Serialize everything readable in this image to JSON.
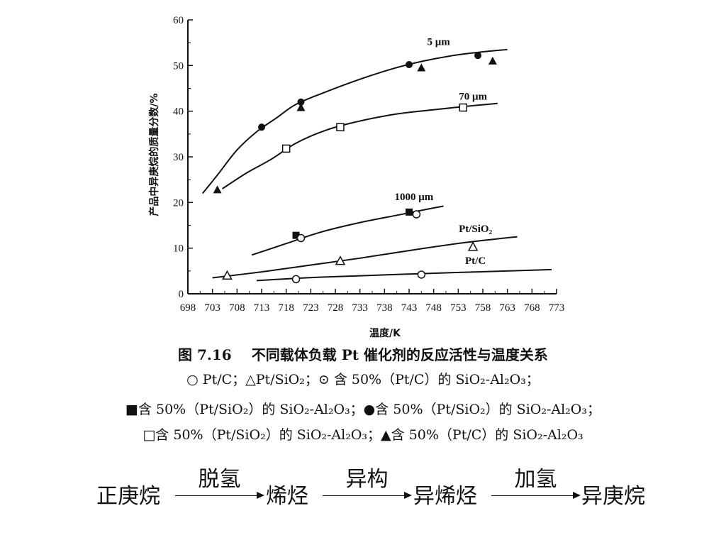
{
  "chart_data": {
    "type": "line",
    "ylabel": "产品中异庚烷的质量分数/%",
    "xlabel": "温度/K",
    "xlim": [
      698,
      773
    ],
    "ylim": [
      0,
      60
    ],
    "xticks": [
      "698",
      "703",
      "708",
      "713",
      "718",
      "723",
      "728",
      "733",
      "738",
      "743",
      "748",
      "753",
      "758",
      "763",
      "768",
      "773"
    ],
    "yticks": [
      "0",
      "10",
      "20",
      "30",
      "40",
      "50",
      "60"
    ],
    "grid": false,
    "curves": [
      {
        "name": "5 μm",
        "label_at": [
          749,
          54.5
        ],
        "points": [
          [
            701,
            22
          ],
          [
            704,
            26
          ],
          [
            708,
            31.5
          ],
          [
            712,
            35.5
          ],
          [
            716,
            38.5
          ],
          [
            720,
            41.5
          ],
          [
            726,
            44.2
          ],
          [
            733,
            47
          ],
          [
            740,
            49.4
          ],
          [
            746,
            51
          ],
          [
            752,
            52.2
          ],
          [
            758,
            53
          ],
          [
            763,
            53.5
          ]
        ]
      },
      {
        "name": "70 μm",
        "label_at": [
          756,
          42.5
        ],
        "points": [
          [
            705,
            23
          ],
          [
            710,
            26.5
          ],
          [
            715,
            29.5
          ],
          [
            720,
            33
          ],
          [
            726,
            35.8
          ],
          [
            732,
            37.6
          ],
          [
            740,
            39.3
          ],
          [
            747,
            40.2
          ],
          [
            754,
            41
          ],
          [
            761,
            41.7
          ]
        ]
      },
      {
        "name": "1000 μm",
        "label_at": [
          744,
          20.5
        ],
        "points": [
          [
            711,
            8.5
          ],
          [
            718,
            11
          ],
          [
            725,
            13.5
          ],
          [
            733,
            15.6
          ],
          [
            741,
            17.3
          ],
          [
            747,
            18.6
          ],
          [
            750,
            19.2
          ]
        ]
      },
      {
        "name": "Pt/SiO₂",
        "label_at": [
          756.5,
          13.5
        ],
        "points": [
          [
            703,
            3.5
          ],
          [
            713,
            4.8
          ],
          [
            723,
            6.3
          ],
          [
            733,
            7.8
          ],
          [
            745,
            9.8
          ],
          [
            755,
            11.3
          ],
          [
            765,
            12.5
          ]
        ]
      },
      {
        "name": "Pt/C",
        "label_at": [
          756.5,
          6.5
        ],
        "points": [
          [
            712,
            2.9
          ],
          [
            722,
            3.5
          ],
          [
            732,
            3.9
          ],
          [
            745,
            4.4
          ],
          [
            757,
            4.8
          ],
          [
            772,
            5.3
          ]
        ]
      }
    ],
    "markers": [
      {
        "symbol": "filled-circle",
        "x": 713,
        "y": 36.5
      },
      {
        "symbol": "filled-circle",
        "x": 721,
        "y": 42
      },
      {
        "symbol": "filled-circle",
        "x": 743,
        "y": 50.2
      },
      {
        "symbol": "filled-circle",
        "x": 757,
        "y": 52.2
      },
      {
        "symbol": "filled-triangle",
        "x": 704,
        "y": 22.8
      },
      {
        "symbol": "filled-triangle",
        "x": 721,
        "y": 40.8
      },
      {
        "symbol": "filled-triangle",
        "x": 745.5,
        "y": 49.5
      },
      {
        "symbol": "filled-triangle",
        "x": 760,
        "y": 51
      },
      {
        "symbol": "open-square",
        "x": 718,
        "y": 31.8
      },
      {
        "symbol": "open-square",
        "x": 729,
        "y": 36.5
      },
      {
        "symbol": "open-square",
        "x": 754,
        "y": 40.8
      },
      {
        "symbol": "filled-square",
        "x": 720,
        "y": 12.8
      },
      {
        "symbol": "filled-square",
        "x": 743,
        "y": 17.9
      },
      {
        "symbol": "open-circle",
        "x": 721,
        "y": 12.2
      },
      {
        "symbol": "open-circle",
        "x": 744.5,
        "y": 17.4
      },
      {
        "symbol": "open-triangle",
        "x": 706,
        "y": 4
      },
      {
        "symbol": "open-triangle",
        "x": 729,
        "y": 7.2
      },
      {
        "symbol": "open-triangle",
        "x": 756,
        "y": 10.3
      },
      {
        "symbol": "open-circle",
        "x": 720,
        "y": 3.2
      },
      {
        "symbol": "open-circle",
        "x": 745.5,
        "y": 4.2
      }
    ]
  },
  "caption": {
    "number": "图 7.16",
    "title": "不同载体负载 Pt 催化剂的反应活性与温度关系",
    "legend_line1": "○ Pt/C；△Pt/SiO₂；⊙ 含 50%（Pt/C）的 SiO₂-Al₂O₃；",
    "legend_line2": "■含 50%（Pt/SiO₂）的 SiO₂-Al₂O₃；●含 50%（Pt/SiO₂）的 SiO₂-Al₂O₃；",
    "legend_line3": "□含 50%（Pt/SiO₂）的 SiO₂-Al₂O₃；▲含 50%（Pt/C）的 SiO₂-Al₂O₃"
  },
  "reaction": {
    "reactant": "正庚烷",
    "step1": "脱氢",
    "intermediate1": "烯烃",
    "step2": "异构",
    "intermediate2": "异烯烃",
    "step3": "加氢",
    "product": "异庚烷"
  }
}
